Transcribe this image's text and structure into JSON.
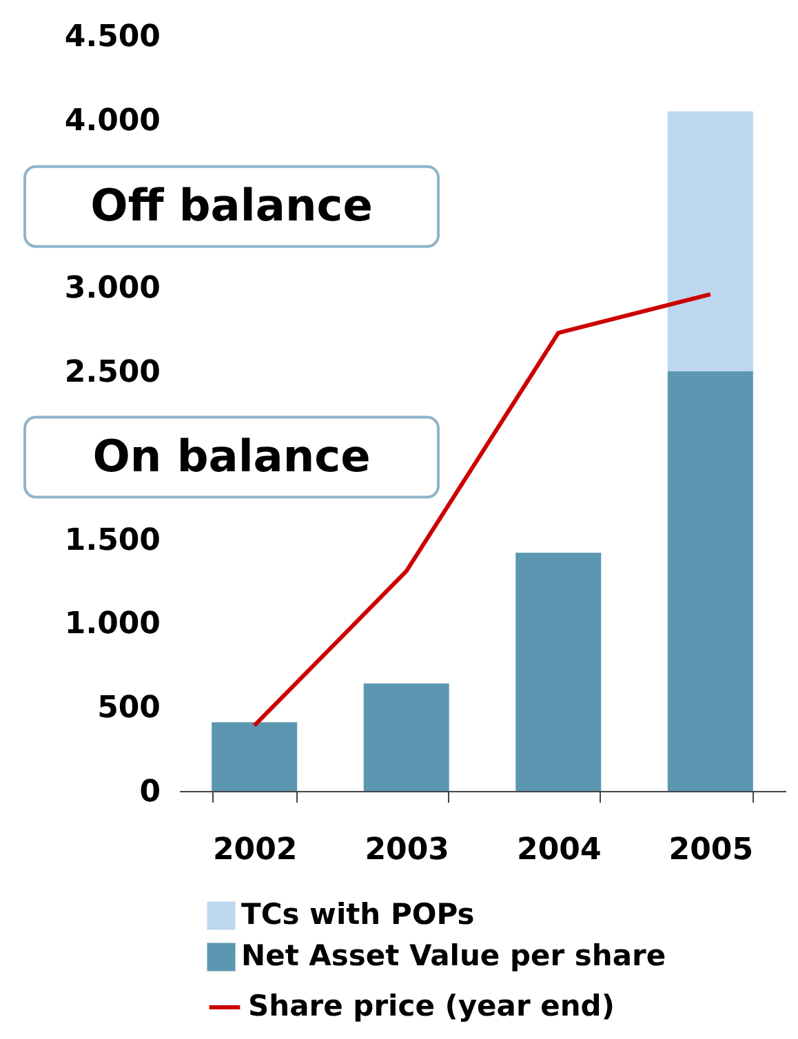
{
  "chart_data": {
    "type": "bar",
    "stacked": true,
    "categories": [
      "2002",
      "2003",
      "2004",
      "2005"
    ],
    "series": [
      {
        "name": "Net Asset Value per share",
        "color": "#5b97b1",
        "values": [
          410,
          640,
          1420,
          2500
        ]
      },
      {
        "name": "TCs with POPs",
        "color": "#bdd7ee",
        "values": [
          null,
          null,
          null,
          1550
        ]
      },
      {
        "name": "Share price (year end)",
        "type": "line",
        "color": "#cc0000",
        "values": [
          390,
          1310,
          2730,
          2960
        ]
      }
    ],
    "ylim": [
      0,
      4500
    ],
    "yticks": [
      0,
      {
        "value": 500,
        "label": "500"
      },
      {
        "value": 1000,
        "label": "1.000"
      },
      {
        "value": 1500,
        "label": "1.500"
      },
      {
        "value": 2500,
        "label": "2.500"
      },
      {
        "value": 3000,
        "label": "3.000"
      },
      {
        "value": 4000,
        "label": "4.000"
      },
      {
        "value": 4500,
        "label": "4.500"
      }
    ],
    "annotations": [
      "Off balance",
      "On balance"
    ],
    "grid": false,
    "legend": "bottom"
  }
}
